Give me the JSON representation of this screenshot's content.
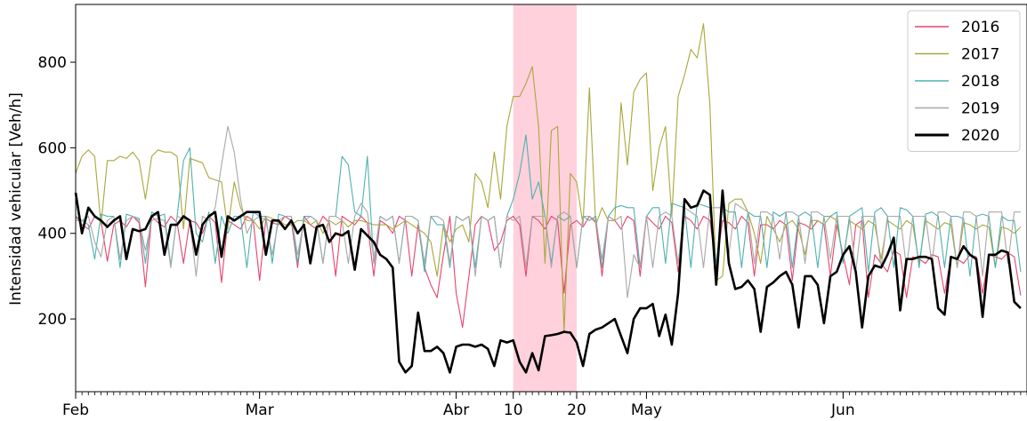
{
  "chart_data": {
    "type": "line",
    "xlabel": "",
    "ylabel": "Intensidad vehicular [Veh/h]",
    "ylim": [
      30,
      935
    ],
    "xlim": [
      "2020-02-01",
      "2020-06-30"
    ],
    "y_ticks": [
      200,
      400,
      600,
      800
    ],
    "x_major_ticks": [
      {
        "date": "2020-02-01",
        "label": "Feb"
      },
      {
        "date": "2020-03-01",
        "label": "Mar"
      },
      {
        "date": "2020-04-01",
        "label": "Abr"
      },
      {
        "date": "2020-04-10",
        "label": "10"
      },
      {
        "date": "2020-04-20",
        "label": "20"
      },
      {
        "date": "2020-05-01",
        "label": "May"
      },
      {
        "date": "2020-06-01",
        "label": "Jun"
      }
    ],
    "highlight_span": {
      "start": "2020-04-10",
      "end": "2020-04-20",
      "color": "#ffd1dc"
    },
    "grid": false,
    "legend_position": "top-right",
    "series": [
      {
        "name": "2016",
        "color": "#e8436c",
        "linewidth": 1.1,
        "values": [
          440,
          420,
          410,
          440,
          430,
          335,
          420,
          430,
          415,
          440,
          425,
          275,
          440,
          425,
          415,
          440,
          425,
          330,
          430,
          425,
          400,
          440,
          425,
          285,
          430,
          420,
          410,
          440,
          430,
          290,
          435,
          425,
          420,
          440,
          430,
          320,
          440,
          420,
          410,
          440,
          425,
          300,
          440,
          430,
          420,
          440,
          425,
          300,
          430,
          420,
          400,
          440,
          430,
          300,
          420,
          320,
          280,
          250,
          350,
          440,
          260,
          180,
          300,
          420,
          440,
          430,
          360,
          380,
          430,
          440,
          420,
          300,
          440,
          430,
          410,
          440,
          430,
          260,
          420,
          430,
          415,
          440,
          425,
          300,
          440,
          430,
          410,
          440,
          430,
          300,
          440,
          425,
          410,
          440,
          425,
          310,
          440,
          430,
          410,
          440,
          430,
          320,
          430,
          425,
          410,
          440,
          425,
          300,
          420,
          420,
          410,
          430,
          420,
          290,
          425,
          420,
          410,
          430,
          420,
          300,
          420,
          350,
          280,
          420,
          430,
          250,
          350,
          330,
          310,
          360,
          350,
          250,
          345,
          340,
          330,
          350,
          345,
          260,
          345,
          340,
          330,
          350,
          345,
          260,
          350,
          345,
          340,
          355,
          345,
          255
        ]
      },
      {
        "name": "2017",
        "color": "#a8a83c",
        "linewidth": 1.1,
        "values": [
          540,
          580,
          595,
          580,
          420,
          570,
          570,
          580,
          575,
          590,
          570,
          480,
          580,
          595,
          590,
          590,
          580,
          410,
          575,
          570,
          565,
          530,
          525,
          520,
          410,
          520,
          460,
          430,
          430,
          410,
          440,
          435,
          430,
          420,
          420,
          430,
          430,
          420,
          430,
          400,
          430,
          420,
          430,
          415,
          430,
          430,
          425,
          420,
          420,
          420,
          410,
          420,
          430,
          420,
          410,
          400,
          380,
          300,
          420,
          380,
          410,
          420,
          380,
          540,
          520,
          460,
          590,
          480,
          650,
          720,
          720,
          750,
          790,
          650,
          330,
          640,
          650,
          170,
          540,
          520,
          420,
          740,
          420,
          460,
          430,
          430,
          705,
          560,
          730,
          760,
          775,
          500,
          600,
          650,
          440,
          720,
          770,
          830,
          810,
          890,
          700,
          290,
          300,
          470,
          480,
          480,
          450,
          400,
          330,
          440,
          410,
          380,
          420,
          430,
          410,
          350,
          430,
          430,
          420,
          440,
          430,
          340,
          430,
          420,
          410,
          430,
          420,
          340,
          430,
          420,
          410,
          430,
          420,
          330,
          430,
          420,
          410,
          425,
          420,
          320,
          425,
          420,
          410,
          420,
          415,
          320,
          415,
          410,
          400,
          415
        ]
      },
      {
        "name": "2018",
        "color": "#4fb0b0",
        "linewidth": 1.1,
        "values": [
          440,
          430,
          420,
          340,
          445,
          440,
          440,
          320,
          445,
          440,
          435,
          330,
          450,
          440,
          445,
          325,
          440,
          570,
          600,
          400,
          380,
          450,
          330,
          440,
          400,
          440,
          440,
          320,
          450,
          440,
          440,
          330,
          445,
          440,
          440,
          330,
          440,
          440,
          430,
          330,
          440,
          440,
          580,
          560,
          450,
          440,
          580,
          330,
          440,
          430,
          440,
          330,
          440,
          440,
          430,
          310,
          440,
          420,
          420,
          320,
          440,
          430,
          440,
          320,
          440,
          430,
          440,
          320,
          440,
          480,
          540,
          630,
          480,
          520,
          440,
          330,
          440,
          430,
          440,
          320,
          440,
          430,
          440,
          320,
          440,
          460,
          465,
          460,
          460,
          320,
          440,
          460,
          460,
          330,
          470,
          465,
          460,
          320,
          470,
          465,
          460,
          330,
          460,
          450,
          450,
          320,
          450,
          440,
          440,
          320,
          450,
          440,
          450,
          320,
          440,
          450,
          440,
          320,
          440,
          440,
          450,
          330,
          440,
          450,
          460,
          310,
          450,
          460,
          440,
          320,
          460,
          455,
          440,
          320,
          445,
          450,
          440,
          320,
          440,
          440,
          435,
          300,
          440,
          445,
          440,
          320,
          440,
          430,
          430,
          310
        ]
      },
      {
        "name": "2019",
        "color": "#a8a8a8",
        "linewidth": 1.1,
        "values": [
          430,
          430,
          440,
          380,
          345,
          430,
          440,
          340,
          430,
          440,
          430,
          360,
          430,
          435,
          430,
          320,
          440,
          435,
          430,
          300,
          440,
          430,
          460,
          560,
          650,
          590,
          480,
          400,
          430,
          440,
          430,
          350,
          430,
          440,
          440,
          350,
          430,
          440,
          430,
          330,
          440,
          440,
          430,
          330,
          440,
          470,
          450,
          340,
          440,
          430,
          440,
          330,
          440,
          440,
          430,
          330,
          440,
          440,
          430,
          330,
          440,
          430,
          440,
          300,
          440,
          430,
          440,
          320,
          440,
          430,
          440,
          320,
          440,
          440,
          440,
          320,
          440,
          450,
          440,
          320,
          440,
          440,
          430,
          340,
          440,
          430,
          440,
          250,
          350,
          320,
          440,
          320,
          440,
          450,
          440,
          330,
          460,
          450,
          440,
          320,
          460,
          460,
          460,
          350,
          470,
          460,
          450,
          330,
          450,
          450,
          440,
          340,
          450,
          450,
          440,
          330,
          450,
          450,
          440,
          340,
          440,
          440,
          440,
          310,
          440,
          440,
          440,
          320,
          440,
          440,
          440,
          320,
          440,
          440,
          440,
          330,
          450,
          450,
          440,
          320,
          450,
          450,
          440,
          300,
          450,
          450,
          450,
          330,
          450,
          450
        ]
      },
      {
        "name": "2020",
        "color": "#000000",
        "linewidth": 2.6,
        "values": [
          495,
          400,
          460,
          440,
          430,
          415,
          430,
          440,
          340,
          410,
          405,
          410,
          440,
          450,
          350,
          420,
          420,
          440,
          430,
          350,
          420,
          440,
          450,
          345,
          440,
          430,
          440,
          450,
          450,
          450,
          350,
          430,
          430,
          410,
          430,
          400,
          420,
          330,
          415,
          420,
          380,
          400,
          395,
          405,
          315,
          410,
          395,
          380,
          350,
          340,
          320,
          100,
          75,
          90,
          215,
          125,
          125,
          135,
          120,
          75,
          135,
          140,
          140,
          135,
          140,
          130,
          90,
          150,
          145,
          150,
          100,
          75,
          120,
          80,
          160,
          162,
          165,
          170,
          168,
          145,
          90,
          165,
          175,
          180,
          190,
          200,
          160,
          120,
          200,
          225,
          225,
          235,
          160,
          210,
          140,
          260,
          480,
          460,
          465,
          500,
          490,
          280,
          500,
          330,
          270,
          275,
          290,
          270,
          170,
          275,
          285,
          300,
          310,
          280,
          180,
          300,
          300,
          280,
          190,
          300,
          310,
          350,
          370,
          310,
          180,
          300,
          325,
          320,
          350,
          390,
          220,
          340,
          340,
          345,
          345,
          340,
          225,
          210,
          345,
          340,
          370,
          350,
          340,
          205,
          350,
          350,
          360,
          355,
          240,
          225
        ]
      }
    ]
  }
}
